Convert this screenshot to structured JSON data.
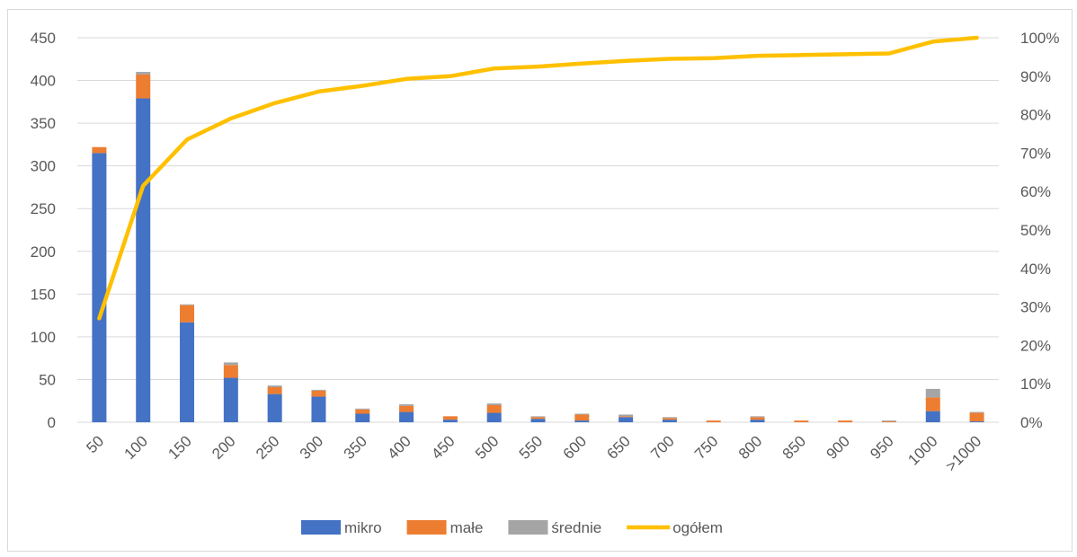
{
  "chart_data": {
    "type": "bar",
    "stacked": true,
    "categories": [
      "50",
      "100",
      "150",
      "200",
      "250",
      "300",
      "350",
      "400",
      "450",
      "500",
      "550",
      "600",
      "650",
      "700",
      "750",
      "800",
      "850",
      "900",
      "950",
      "1000",
      ">1000"
    ],
    "series": [
      {
        "name": "mikro",
        "type": "bar",
        "axis": "left",
        "color": "#4472C4",
        "values": [
          315,
          379,
          117,
          52,
          33,
          30,
          10,
          12,
          3,
          11,
          4,
          2,
          6,
          3,
          0,
          3,
          0,
          0,
          0,
          13,
          1
        ]
      },
      {
        "name": "małe",
        "type": "bar",
        "axis": "left",
        "color": "#ED7D31",
        "values": [
          7,
          28,
          20,
          15,
          8,
          7,
          5,
          7,
          4,
          9,
          2,
          7,
          1,
          2,
          2,
          3,
          2,
          2,
          1,
          16,
          10
        ]
      },
      {
        "name": "średnie",
        "type": "bar",
        "axis": "left",
        "color": "#A5A5A5",
        "values": [
          0,
          3,
          1,
          3,
          2,
          1,
          1,
          2,
          0,
          2,
          1,
          1,
          2,
          1,
          0,
          1,
          0,
          0,
          1,
          10,
          1
        ]
      },
      {
        "name": "ogółem",
        "type": "line",
        "axis": "right",
        "color": "#FFC000",
        "values": [
          27,
          61.5,
          73.5,
          79,
          83,
          86,
          87.5,
          89.3,
          90,
          92,
          92.5,
          93.3,
          94,
          94.5,
          94.7,
          95.3,
          95.5,
          95.7,
          95.9,
          99,
          100
        ]
      }
    ],
    "left_axis": {
      "min": 0,
      "max": 450,
      "ticks": [
        "0",
        "50",
        "100",
        "150",
        "200",
        "250",
        "300",
        "350",
        "400",
        "450"
      ]
    },
    "right_axis": {
      "min": 0,
      "max": 100,
      "ticks": [
        "0%",
        "10%",
        "20%",
        "30%",
        "40%",
        "50%",
        "60%",
        "70%",
        "80%",
        "90%",
        "100%"
      ]
    },
    "grid": true,
    "legend_position": "bottom",
    "legend": [
      "mikro",
      "małe",
      "średnie",
      "ogółem"
    ]
  }
}
